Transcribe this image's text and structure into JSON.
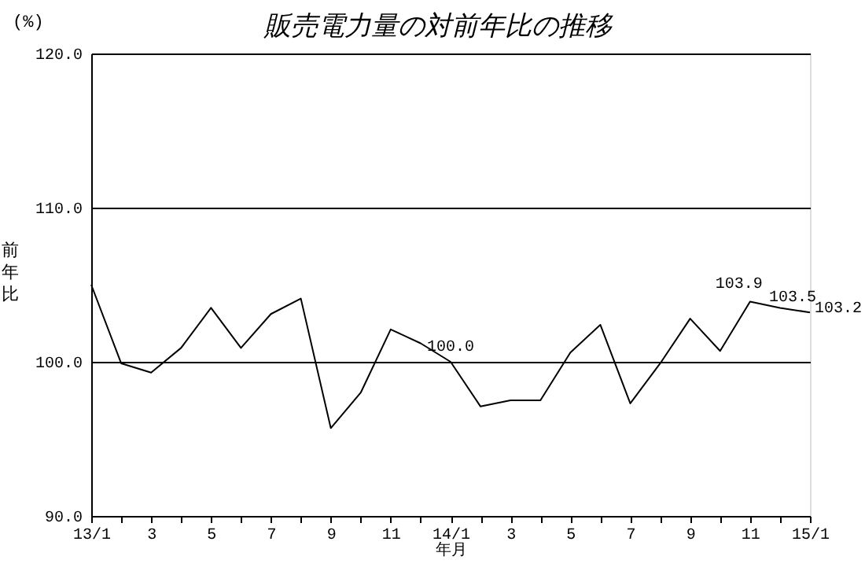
{
  "chart_data": {
    "type": "line",
    "title": "販売電力量の対前年比の推移",
    "xlabel": "年月",
    "ylabel": "前年比",
    "annotations": [
      "(%)"
    ],
    "categories": [
      "13/1",
      null,
      "3",
      null,
      "5",
      null,
      "7",
      null,
      "9",
      null,
      "11",
      null,
      "14/1",
      null,
      "3",
      null,
      "5",
      null,
      "7",
      null,
      "9",
      null,
      "11",
      null,
      "15/1"
    ],
    "series": [
      {
        "color": "#000000",
        "values": [
          105.0,
          99.9,
          99.3,
          100.9,
          103.5,
          100.9,
          103.1,
          104.1,
          95.7,
          98.0,
          102.1,
          101.2,
          100.0,
          97.1,
          97.5,
          97.5,
          100.6,
          102.4,
          97.3,
          99.9,
          102.8,
          100.7,
          103.9,
          103.5,
          103.2
        ],
        "value_labels": [
          null,
          null,
          null,
          null,
          null,
          null,
          null,
          null,
          null,
          null,
          null,
          null,
          "100.0",
          null,
          null,
          null,
          null,
          null,
          null,
          null,
          null,
          null,
          "103.9",
          "103.5",
          "103.2"
        ]
      }
    ],
    "ylim": [
      90,
      120
    ],
    "yticks": [
      {
        "value": 90,
        "label": "90.0"
      },
      {
        "value": 100,
        "label": "100.0"
      },
      {
        "value": 110,
        "label": "110.0"
      },
      {
        "value": 120,
        "label": "120.0"
      }
    ],
    "grid": "y",
    "marker": "none",
    "line_style": "solid"
  }
}
